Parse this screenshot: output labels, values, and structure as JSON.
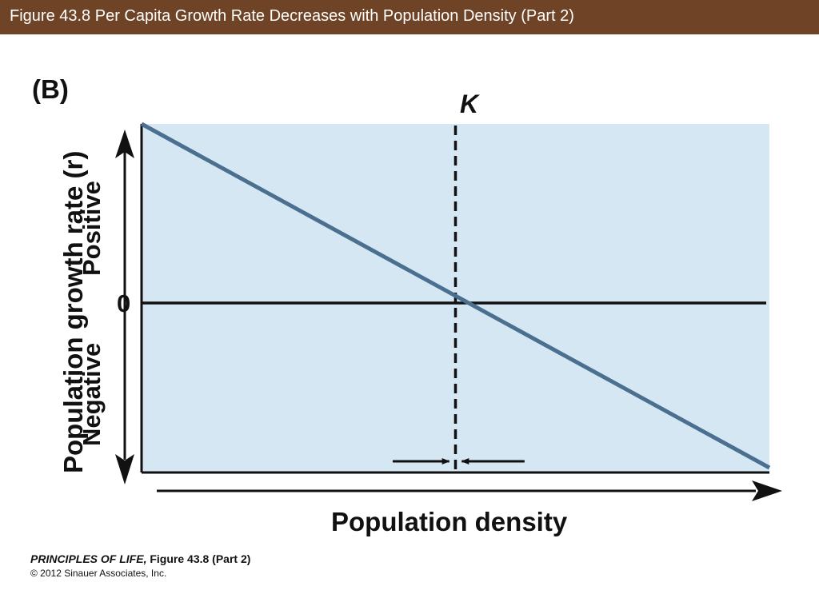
{
  "header": {
    "title": "Figure 43.8  Per Capita Growth Rate Decreases with Population Density (Part 2)"
  },
  "panel_label": "(B)",
  "credit": {
    "book": "PRINCIPLES OF LIFE,",
    "figure": "Figure 43.8 (Part 2)",
    "copyright": "© 2012 Sinauer Associates, Inc."
  },
  "colors": {
    "title_bar": "#6e4326",
    "plot_bg": "#d6e7f4",
    "growth_line": "#4a6f8f",
    "axis": "#111111"
  },
  "chart_data": {
    "type": "line",
    "xlabel": "Population density",
    "ylabel": "Population growth rate (r)",
    "ylabel_positive": "Positive",
    "ylabel_negative": "Negative",
    "y_tick_zero": "0",
    "k_label": "K",
    "xlim": [
      0,
      2
    ],
    "ylim": [
      -1.06,
      1.12
    ],
    "series": [
      {
        "x": [
          0,
          2
        ],
        "y": [
          1.12,
          -1.03
        ]
      }
    ],
    "reference_lines": [
      {
        "orientation": "horizontal",
        "value": 0,
        "style": "solid"
      },
      {
        "orientation": "vertical",
        "value": 1,
        "label": "K",
        "style": "dashed"
      }
    ],
    "annotations": [
      {
        "type": "arrow",
        "from": 0.8,
        "to": 0.98,
        "direction": "right"
      },
      {
        "type": "arrow",
        "from": 1.22,
        "to": 1.02,
        "direction": "left"
      }
    ],
    "grid": false,
    "legend": "none"
  }
}
